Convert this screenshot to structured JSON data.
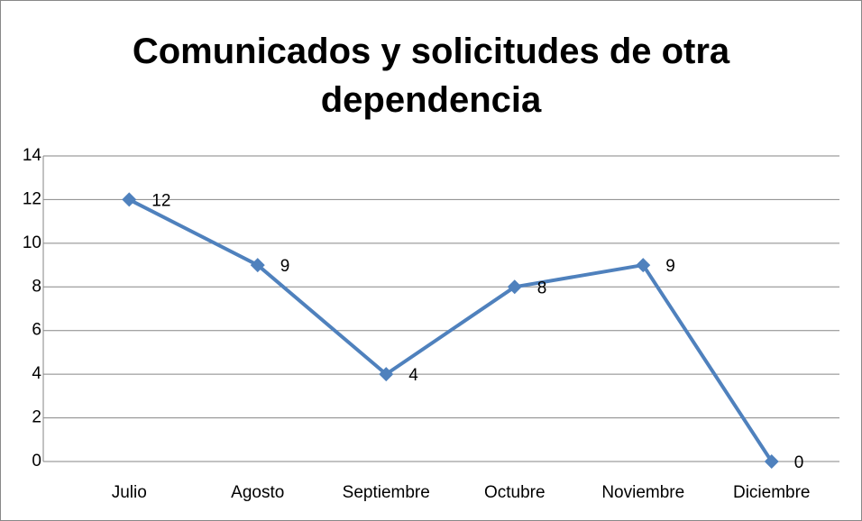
{
  "chart_data": {
    "type": "line",
    "title": "Comunicados y solicitudes de otra dependencia",
    "categories": [
      "Julio",
      "Agosto",
      "Septiembre",
      "Octubre",
      "Noviembre",
      "Diciembre"
    ],
    "values": [
      12,
      9,
      4,
      8,
      9,
      0
    ],
    "color": "#4f81bd",
    "ylim": [
      0,
      14
    ],
    "yticks": [
      0,
      2,
      4,
      6,
      8,
      10,
      12,
      14
    ],
    "grid": true,
    "data_labels": true
  }
}
